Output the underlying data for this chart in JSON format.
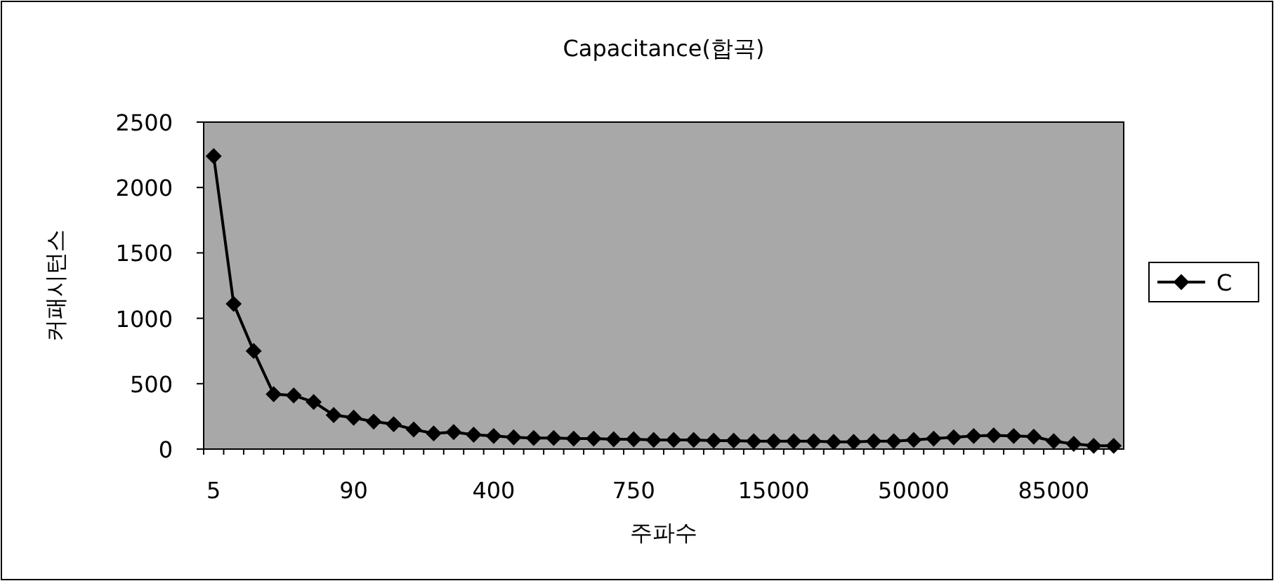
{
  "chart_data": {
    "type": "line",
    "title": "Capacitance(합곡)",
    "xlabel": "주파수",
    "ylabel": "커패시턴스",
    "categories": [
      "5",
      null,
      null,
      null,
      null,
      null,
      null,
      "90",
      null,
      null,
      null,
      null,
      null,
      null,
      "400",
      null,
      null,
      null,
      null,
      null,
      null,
      "750",
      null,
      null,
      null,
      null,
      null,
      null,
      "15000",
      null,
      null,
      null,
      null,
      null,
      null,
      "50000",
      null,
      null,
      null,
      null,
      null,
      null,
      "85000",
      null,
      null,
      null
    ],
    "series": [
      {
        "name": "C",
        "color": "#000000",
        "values": [
          2240,
          1110,
          750,
          420,
          410,
          360,
          260,
          240,
          210,
          190,
          150,
          120,
          130,
          110,
          100,
          90,
          85,
          85,
          80,
          80,
          75,
          75,
          70,
          70,
          70,
          65,
          65,
          60,
          60,
          60,
          60,
          55,
          55,
          60,
          60,
          70,
          80,
          90,
          100,
          105,
          100,
          95,
          60,
          40,
          25,
          25
        ]
      }
    ],
    "ylim": [
      0,
      2500
    ],
    "yticks": [
      0,
      500,
      1000,
      1500,
      2000,
      2500
    ],
    "grid": false,
    "legend": "right",
    "marker": "diamond",
    "line_style": "solid"
  }
}
